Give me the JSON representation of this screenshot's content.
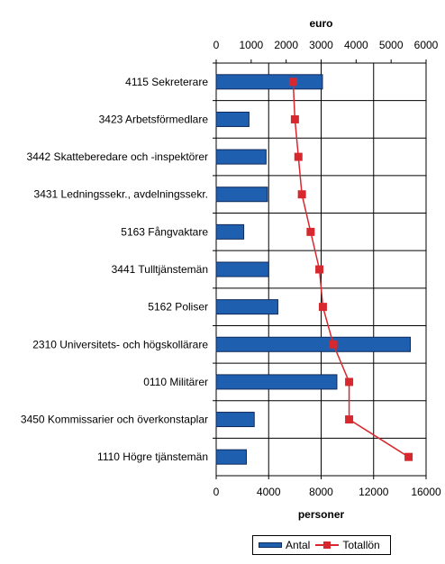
{
  "chart_data": {
    "type": "bar",
    "orientation": "horizontal",
    "categories": [
      "4115 Sekreterare",
      "3423 Arbetsförmedlare",
      "3442 Skatteberedare och -inspektörer",
      "3431 Ledningssekr., avdelningssekr.",
      "5163 Fångvaktare",
      "3441 Tulltjänstemän",
      "5162 Poliser",
      "2310 Universitets- och högskollärare",
      "0110 Militärer",
      "3450 Kommissarier och överkonstaplar",
      "1110 Högre tjänstemän"
    ],
    "series": [
      {
        "name": "Antal",
        "type": "bar",
        "axis": "bottom",
        "values": [
          8100,
          2500,
          3800,
          3900,
          2100,
          4000,
          4700,
          14800,
          9200,
          2900,
          2300
        ]
      },
      {
        "name": "Totallön",
        "type": "line",
        "axis": "top",
        "values": [
          2200,
          2250,
          2350,
          2450,
          2700,
          2950,
          3050,
          3350,
          3800,
          3800,
          5500
        ]
      }
    ],
    "top_axis": {
      "label": "euro",
      "min": 0,
      "max": 6000,
      "ticks": [
        "0",
        "1000",
        "2000",
        "3000",
        "4000",
        "5000",
        "6000"
      ]
    },
    "bottom_axis": {
      "label": "personer",
      "min": 0,
      "max": 16000,
      "ticks": [
        "0",
        "4000",
        "8000",
        "12000",
        "16000"
      ]
    },
    "grid": true,
    "legend_position": "bottom-right",
    "colors": {
      "bar": "#1f5faf",
      "bar_border": "#102a5a",
      "line": "#d8282f"
    }
  }
}
